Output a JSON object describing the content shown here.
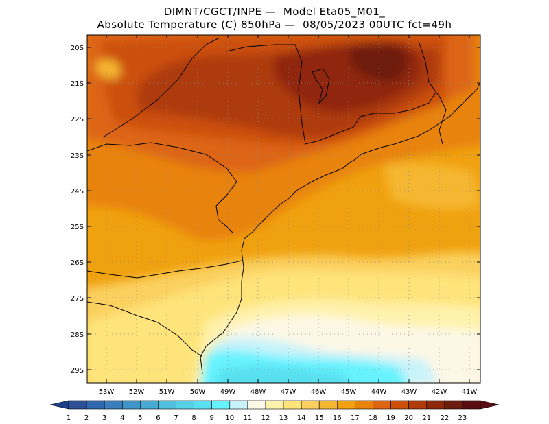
{
  "header": {
    "line1": "DIMNT/CGCT/INPE —  Model Eta05_M01_",
    "line2": "Absolute Temperature (C) 850hPa —  08/05/2023 00UTC fct=49h"
  },
  "axes": {
    "lat_labels": [
      "20S",
      "21S",
      "22S",
      "23S",
      "24S",
      "25S",
      "26S",
      "27S",
      "28S",
      "29S"
    ],
    "lon_labels": [
      "53W",
      "52W",
      "51W",
      "50W",
      "49W",
      "48W",
      "47W",
      "46W",
      "45W",
      "44W",
      "43W",
      "42W",
      "41W"
    ]
  },
  "legend": {
    "labels": [
      "1",
      "2",
      "3",
      "4",
      "5",
      "6",
      "7",
      "8",
      "9",
      "10",
      "11",
      "12",
      "13",
      "14",
      "15",
      "16",
      "17",
      "18",
      "19",
      "20",
      "21",
      "22",
      "23"
    ],
    "colors": [
      "#2c4f96",
      "#2f66ad",
      "#3b7dbd",
      "#3e95c9",
      "#48abd4",
      "#52bfdc",
      "#56d0e4",
      "#58dff0",
      "#66f3ff",
      "#c8f3fb",
      "#fdf8e6",
      "#fff2ac",
      "#fee47a",
      "#fbd05e",
      "#f5b731",
      "#f0a10f",
      "#e8830b",
      "#dd6513",
      "#cc4f0a",
      "#ae3b08",
      "#8f2808",
      "#6e1d0d",
      "#5a0e10"
    ],
    "under_color": "#1e3f8a",
    "over_color": "#5a0d12"
  }
}
